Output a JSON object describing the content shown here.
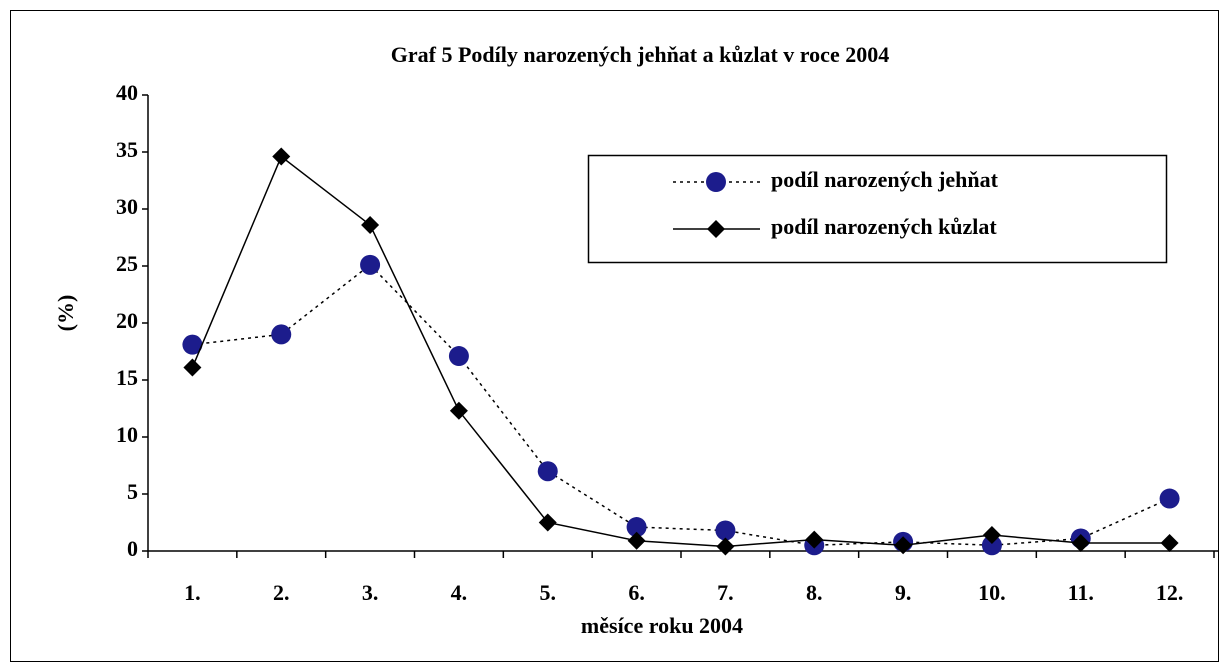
{
  "chart_data": {
    "type": "line",
    "title": "Graf 5 Podíly narozených jehňat a kůzlat v roce 2004",
    "xlabel": "měsíce roku 2004",
    "ylabel": "(%)",
    "categories": [
      "1.",
      "2.",
      "3.",
      "4.",
      "5.",
      "6.",
      "7.",
      "8.",
      "9.",
      "10.",
      "11.",
      "12."
    ],
    "series": [
      {
        "name": "podíl narozených jehňat",
        "color": "#1c1c8c",
        "marker": "circle",
        "linestyle": "dotted",
        "values": [
          18.1,
          19.0,
          25.1,
          17.1,
          7.0,
          2.1,
          1.8,
          0.5,
          0.8,
          0.5,
          1.1,
          4.6
        ]
      },
      {
        "name": "podíl narozených kůzlat",
        "color": "#000000",
        "marker": "diamond",
        "linestyle": "solid",
        "values": [
          16.1,
          34.6,
          28.6,
          12.3,
          2.5,
          0.9,
          0.4,
          1.0,
          0.5,
          1.4,
          0.7,
          0.7
        ]
      }
    ],
    "ylim": [
      0,
      40
    ],
    "yticks": [
      0,
      5,
      10,
      15,
      20,
      25,
      30,
      35,
      40
    ],
    "grid": false,
    "legend": "upper right"
  }
}
